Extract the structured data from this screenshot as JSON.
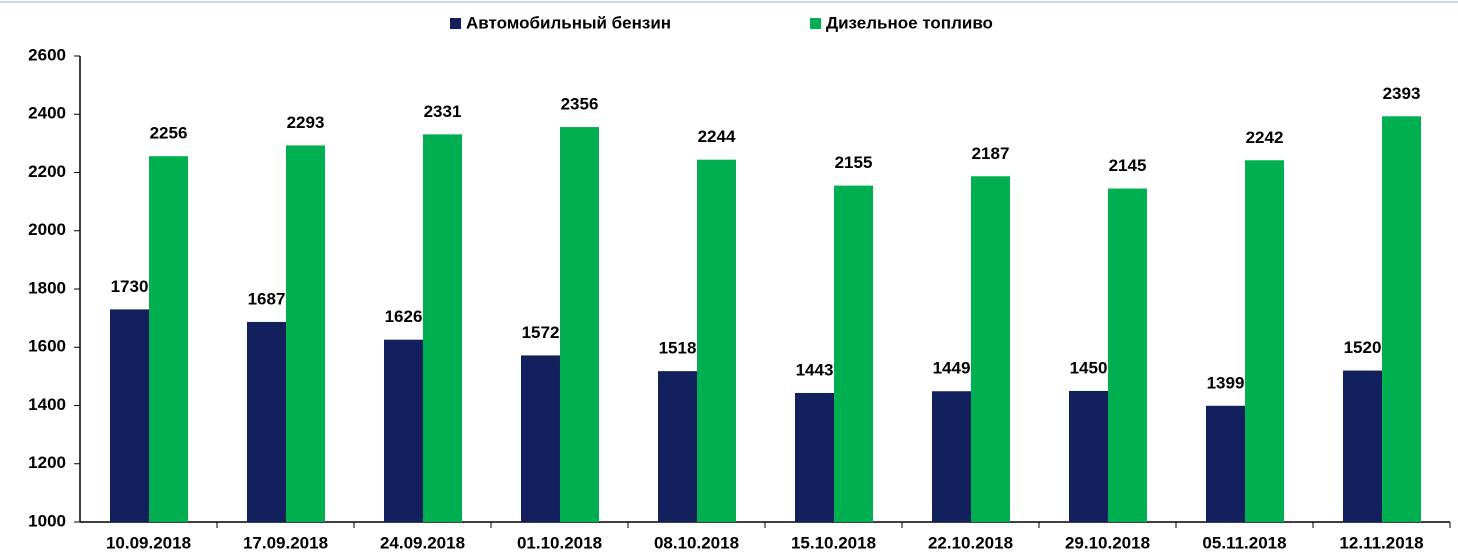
{
  "chart_data": {
    "type": "bar",
    "categories": [
      "10.09.2018",
      "17.09.2018",
      "24.09.2018",
      "01.10.2018",
      "08.10.2018",
      "15.10.2018",
      "22.10.2018",
      "29.10.2018",
      "05.11.2018",
      "12.11.2018"
    ],
    "series": [
      {
        "name": "Автомобильный бензин",
        "color": "#13205e",
        "values": [
          1730,
          1687,
          1626,
          1572,
          1518,
          1443,
          1449,
          1450,
          1399,
          1520
        ]
      },
      {
        "name": "Дизельное топливо",
        "color": "#00b050",
        "values": [
          2256,
          2293,
          2331,
          2356,
          2244,
          2155,
          2187,
          2145,
          2242,
          2393
        ]
      }
    ],
    "ylim": [
      1000,
      2600
    ],
    "yticks": [
      1000,
      1200,
      1400,
      1600,
      1800,
      2000,
      2200,
      2400,
      2600
    ],
    "grid": false,
    "legend": "top"
  }
}
